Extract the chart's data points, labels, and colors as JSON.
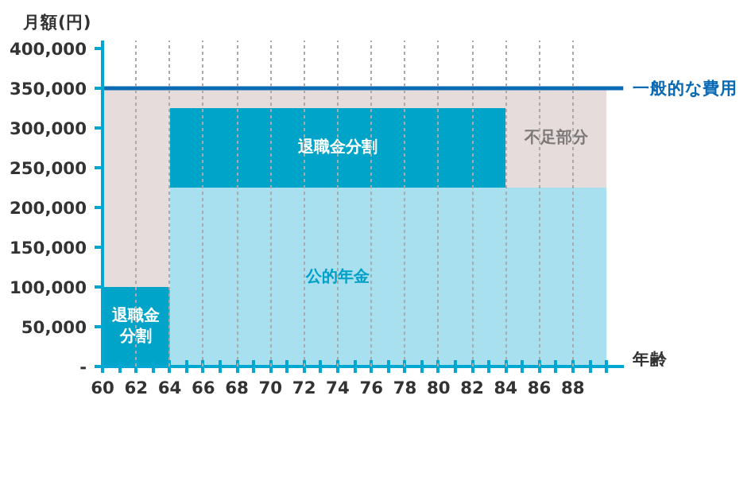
{
  "chart_data": {
    "type": "area",
    "stacked": true,
    "xlabel": "年齢",
    "ylabel": "月額(円)",
    "x": [
      60,
      64,
      64,
      84,
      84,
      90
    ],
    "series": [
      {
        "color": "#a8e0ef",
        "values": [
          0,
          0,
          225000,
          225000,
          225000,
          225000
        ]
      },
      {
        "color": "#00a4c8",
        "values": [
          100000,
          100000,
          100000,
          100000,
          0,
          0
        ]
      },
      {
        "color": "#e6dcdc",
        "values": [
          250000,
          250000,
          25000,
          25000,
          125000,
          125000
        ]
      }
    ],
    "xlim": [
      60,
      91
    ],
    "ylim": [
      0,
      410000
    ],
    "xticks": [
      60,
      {
        "value": 61,
        "label": null
      },
      62,
      {
        "value": 63,
        "label": null
      },
      64,
      {
        "value": 65,
        "label": null
      },
      66,
      {
        "value": 67,
        "label": null
      },
      68,
      {
        "value": 69,
        "label": null
      },
      70,
      {
        "value": 71,
        "label": null
      },
      72,
      {
        "value": 73,
        "label": null
      },
      74,
      {
        "value": 75,
        "label": null
      },
      76,
      {
        "value": 77,
        "label": null
      },
      78,
      {
        "value": 79,
        "label": null
      },
      80,
      {
        "value": 81,
        "label": null
      },
      82,
      {
        "value": 83,
        "label": null
      },
      84,
      {
        "value": 85,
        "label": null
      },
      86,
      {
        "value": 87,
        "label": null
      },
      88,
      {
        "value": 89,
        "label": null
      },
      {
        "value": 90,
        "label": null
      }
    ],
    "yticks": [
      {
        "value": 0,
        "label": "-"
      },
      {
        "value": 50000,
        "label": "50,000"
      },
      {
        "value": 100000,
        "label": "100,000"
      },
      {
        "value": 150000,
        "label": "150,000"
      },
      {
        "value": 200000,
        "label": "200,000"
      },
      {
        "value": 250000,
        "label": "250,000"
      },
      {
        "value": 300000,
        "label": "300,000"
      },
      {
        "value": 350000,
        "label": "350,000"
      },
      {
        "value": 400000,
        "label": "400,000"
      }
    ],
    "grid": "x",
    "ref_lines": [
      {
        "axis": "y",
        "value": 350000,
        "label": "一般的な費用",
        "color": "#0a6ab4"
      }
    ],
    "annotations": [
      {
        "text": "退職金分割",
        "x": 74,
        "y": 325000
      },
      "公的年金",
      {
        "text": "不足部分",
        "x": 87,
        "y": 350000
      },
      {
        "text": "退職金分割",
        "x": 62,
        "y": 100000
      }
    ]
  }
}
